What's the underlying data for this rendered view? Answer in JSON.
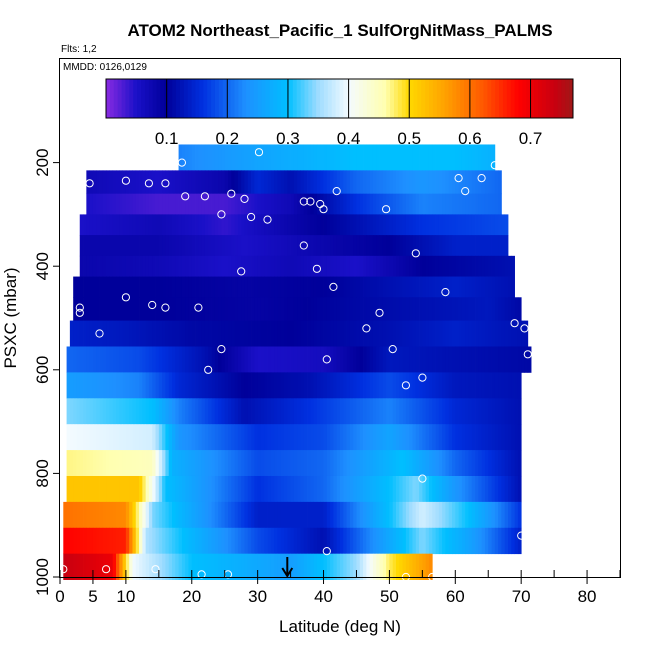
{
  "chart_data": {
    "type": "heatmap",
    "title": "ATOM2 Northeast_Pacific_1 SulfOrgNitMass_PALMS",
    "flights_label": "Flts: 1,2",
    "dates_label": "MMDD: 0126,0129",
    "xlabel": "Latitude (deg N)",
    "ylabel": "PSXC (mbar)",
    "xlim": [
      0,
      85
    ],
    "ylim": [
      1000,
      0
    ],
    "x_ticks": [
      0,
      5,
      10,
      20,
      30,
      40,
      50,
      60,
      70,
      80
    ],
    "y_ticks": [
      200,
      400,
      600,
      800,
      1000
    ],
    "color_scale": {
      "min": 0.0,
      "max": 0.77,
      "tick_values": [
        0.1,
        0.2,
        0.3,
        0.4,
        0.5,
        0.6,
        0.7
      ],
      "tick_labels": [
        "0.1",
        "0.2",
        "0.3",
        "0.4",
        "0.5",
        "0.6",
        "0.7"
      ],
      "stops": [
        [
          0.0,
          "#8a2be2"
        ],
        [
          0.05,
          "#1a10c8"
        ],
        [
          0.1,
          "#00009a"
        ],
        [
          0.16,
          "#0030e0"
        ],
        [
          0.23,
          "#1e90ff"
        ],
        [
          0.3,
          "#00bfff"
        ],
        [
          0.35,
          "#9fdcff"
        ],
        [
          0.4,
          "#f4fbff"
        ],
        [
          0.46,
          "#ffffb0"
        ],
        [
          0.5,
          "#ffd800"
        ],
        [
          0.56,
          "#ffa000"
        ],
        [
          0.62,
          "#ff5a00"
        ],
        [
          0.68,
          "#ff0000"
        ],
        [
          0.74,
          "#c80010"
        ],
        [
          0.77,
          "#a01818"
        ]
      ]
    },
    "arrow_latitude": 34.5,
    "bands": [
      {
        "p": 190,
        "x0": 18,
        "x1": 66,
        "v": [
          [
            18,
            0.22
          ],
          [
            30,
            0.26
          ],
          [
            45,
            0.3
          ],
          [
            60,
            0.3
          ],
          [
            66,
            0.28
          ]
        ]
      },
      {
        "p": 240,
        "x0": 4,
        "x1": 67,
        "v": [
          [
            4,
            0.07
          ],
          [
            15,
            0.05
          ],
          [
            25,
            0.08
          ],
          [
            30,
            0.15
          ],
          [
            35,
            0.12
          ],
          [
            45,
            0.2
          ],
          [
            55,
            0.24
          ],
          [
            67,
            0.2
          ]
        ]
      },
      {
        "p": 280,
        "x0": 4,
        "x1": 67,
        "v": [
          [
            4,
            0.05
          ],
          [
            15,
            0.03
          ],
          [
            25,
            0.03
          ],
          [
            35,
            0.07
          ],
          [
            45,
            0.16
          ],
          [
            55,
            0.22
          ],
          [
            67,
            0.2
          ]
        ]
      },
      {
        "p": 320,
        "x0": 3,
        "x1": 68,
        "v": [
          [
            3,
            0.05
          ],
          [
            15,
            0.07
          ],
          [
            25,
            0.04
          ],
          [
            35,
            0.08
          ],
          [
            45,
            0.12
          ],
          [
            55,
            0.16
          ],
          [
            68,
            0.18
          ]
        ]
      },
      {
        "p": 360,
        "x0": 3,
        "x1": 68,
        "v": [
          [
            3,
            0.08
          ],
          [
            15,
            0.08
          ],
          [
            28,
            0.05
          ],
          [
            40,
            0.08
          ],
          [
            50,
            0.1
          ],
          [
            60,
            0.14
          ],
          [
            68,
            0.14
          ]
        ]
      },
      {
        "p": 400,
        "x0": 3,
        "x1": 69,
        "v": [
          [
            3,
            0.08
          ],
          [
            15,
            0.07
          ],
          [
            25,
            0.05
          ],
          [
            35,
            0.07
          ],
          [
            45,
            0.05
          ],
          [
            55,
            0.1
          ],
          [
            69,
            0.12
          ]
        ]
      },
      {
        "p": 440,
        "x0": 2,
        "x1": 69,
        "v": [
          [
            2,
            0.1
          ],
          [
            15,
            0.1
          ],
          [
            28,
            0.09
          ],
          [
            40,
            0.1
          ],
          [
            50,
            0.12
          ],
          [
            60,
            0.14
          ],
          [
            69,
            0.12
          ]
        ]
      },
      {
        "p": 480,
        "x0": 2,
        "x1": 70,
        "v": [
          [
            2,
            0.1
          ],
          [
            15,
            0.1
          ],
          [
            30,
            0.09
          ],
          [
            45,
            0.11
          ],
          [
            55,
            0.12
          ],
          [
            65,
            0.13
          ],
          [
            70,
            0.11
          ]
        ]
      },
      {
        "p": 530,
        "x0": 1.5,
        "x1": 71,
        "v": [
          [
            1.5,
            0.14
          ],
          [
            10,
            0.13
          ],
          [
            20,
            0.11
          ],
          [
            35,
            0.1
          ],
          [
            50,
            0.12
          ],
          [
            60,
            0.14
          ],
          [
            71,
            0.12
          ]
        ]
      },
      {
        "p": 580,
        "x0": 1,
        "x1": 71.5,
        "v": [
          [
            1,
            0.2
          ],
          [
            12,
            0.18
          ],
          [
            22,
            0.12
          ],
          [
            30,
            0.05
          ],
          [
            40,
            0.06
          ],
          [
            50,
            0.13
          ],
          [
            60,
            0.12
          ],
          [
            71.5,
            0.11
          ]
        ]
      },
      {
        "p": 630,
        "x0": 1,
        "x1": 70,
        "v": [
          [
            1,
            0.25
          ],
          [
            12,
            0.22
          ],
          [
            18,
            0.15
          ],
          [
            28,
            0.1
          ],
          [
            38,
            0.12
          ],
          [
            50,
            0.18
          ],
          [
            60,
            0.13
          ],
          [
            70,
            0.12
          ]
        ]
      },
      {
        "p": 680,
        "x0": 1,
        "x1": 70,
        "v": [
          [
            1,
            0.34
          ],
          [
            14,
            0.3
          ],
          [
            18,
            0.22
          ],
          [
            28,
            0.12
          ],
          [
            38,
            0.16
          ],
          [
            50,
            0.22
          ],
          [
            60,
            0.15
          ],
          [
            70,
            0.12
          ]
        ]
      },
      {
        "p": 730,
        "x0": 1,
        "x1": 70,
        "v": [
          [
            1,
            0.4
          ],
          [
            14,
            0.38
          ],
          [
            18,
            0.24
          ],
          [
            30,
            0.16
          ],
          [
            40,
            0.18
          ],
          [
            50,
            0.26
          ],
          [
            60,
            0.16
          ],
          [
            70,
            0.12
          ]
        ]
      },
      {
        "p": 780,
        "x0": 1,
        "x1": 70,
        "v": [
          [
            1,
            0.47
          ],
          [
            14,
            0.45
          ],
          [
            17,
            0.28
          ],
          [
            30,
            0.18
          ],
          [
            40,
            0.2
          ],
          [
            52,
            0.3
          ],
          [
            60,
            0.2
          ],
          [
            70,
            0.12
          ]
        ]
      },
      {
        "p": 830,
        "x0": 1,
        "x1": 70,
        "v": [
          [
            1,
            0.52
          ],
          [
            12,
            0.52
          ],
          [
            16,
            0.3
          ],
          [
            30,
            0.16
          ],
          [
            40,
            0.2
          ],
          [
            54,
            0.34
          ],
          [
            60,
            0.24
          ],
          [
            70,
            0.12
          ]
        ]
      },
      {
        "p": 880,
        "x0": 0.5,
        "x1": 70,
        "v": [
          [
            0.5,
            0.6
          ],
          [
            10,
            0.58
          ],
          [
            14,
            0.34
          ],
          [
            30,
            0.14
          ],
          [
            40,
            0.14
          ],
          [
            55,
            0.38
          ],
          [
            62,
            0.3
          ],
          [
            70,
            0.16
          ]
        ]
      },
      {
        "p": 930,
        "x0": 0.5,
        "x1": 70,
        "v": [
          [
            0.5,
            0.68
          ],
          [
            10,
            0.66
          ],
          [
            13,
            0.36
          ],
          [
            30,
            0.18
          ],
          [
            40,
            0.12
          ],
          [
            55,
            0.34
          ],
          [
            62,
            0.26
          ],
          [
            70,
            0.14
          ]
        ]
      },
      {
        "p": 980,
        "x0": 0.5,
        "x1": 56.5,
        "v": [
          [
            0.5,
            0.74
          ],
          [
            8,
            0.7
          ],
          [
            11,
            0.4
          ],
          [
            20,
            0.3
          ],
          [
            35,
            0.25
          ],
          [
            45,
            0.35
          ],
          [
            50,
            0.48
          ],
          [
            56.5,
            0.58
          ]
        ]
      }
    ],
    "sample_points": [
      [
        18.5,
        200
      ],
      [
        30.2,
        180
      ],
      [
        66,
        205
      ],
      [
        4.5,
        240
      ],
      [
        10,
        235
      ],
      [
        13.5,
        240
      ],
      [
        16,
        240
      ],
      [
        19,
        265
      ],
      [
        22,
        265
      ],
      [
        26,
        260
      ],
      [
        24.5,
        300
      ],
      [
        29,
        305
      ],
      [
        28,
        270
      ],
      [
        31.5,
        310
      ],
      [
        37,
        275
      ],
      [
        38,
        275
      ],
      [
        39.5,
        280
      ],
      [
        40,
        290
      ],
      [
        42,
        255
      ],
      [
        49.5,
        290
      ],
      [
        60.5,
        230
      ],
      [
        61.5,
        255
      ],
      [
        64,
        230
      ],
      [
        37,
        360
      ],
      [
        39,
        405
      ],
      [
        41.5,
        440
      ],
      [
        46.5,
        520
      ],
      [
        48.5,
        490
      ],
      [
        50.5,
        560
      ],
      [
        54,
        375
      ],
      [
        58.5,
        450
      ],
      [
        27.5,
        410
      ],
      [
        10,
        460
      ],
      [
        14,
        475
      ],
      [
        16,
        480
      ],
      [
        21,
        480
      ],
      [
        3,
        480
      ],
      [
        3,
        490
      ],
      [
        6,
        530
      ],
      [
        24.5,
        560
      ],
      [
        22.5,
        600
      ],
      [
        40.5,
        580
      ],
      [
        52.5,
        630
      ],
      [
        55,
        615
      ],
      [
        69,
        510
      ],
      [
        70.5,
        520
      ],
      [
        71,
        570
      ],
      [
        55,
        810
      ],
      [
        70,
        920
      ],
      [
        40.5,
        950
      ],
      [
        52.5,
        1000
      ],
      [
        0.5,
        985
      ],
      [
        7,
        985
      ],
      [
        14.5,
        985
      ],
      [
        21.5,
        995
      ],
      [
        25.5,
        995
      ],
      [
        56.5,
        1000
      ]
    ]
  }
}
